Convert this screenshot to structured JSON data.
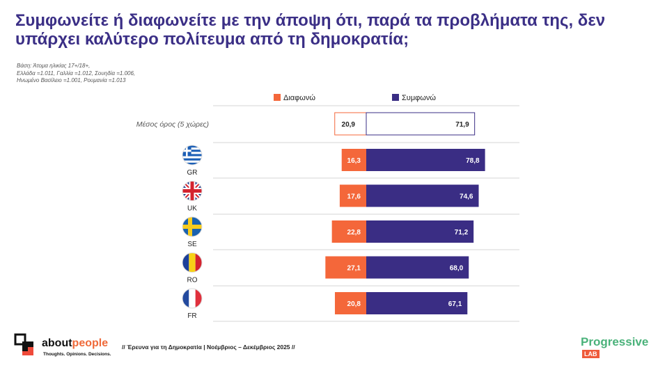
{
  "title": "Συμφωνείτε ή διαφωνείτε με την άποψη ότι, παρά τα προβλήματα της, δεν υπάρχει καλύτερο πολίτευμα από τη δημοκρατία;",
  "base_note": [
    "Βάση: Άτομα ηλικίας 17+/18+,",
    "Ελλάδα =1.011, Γαλλία =1.012, Σουηδία =1.006,",
    "Ηνωμένο Βασίλειο =1.001, Ρουμανία =1.013"
  ],
  "colors": {
    "disagree": "#f4673a",
    "agree": "#3a2d84",
    "title": "#3b2f86"
  },
  "chart_data": {
    "type": "bar",
    "orientation": "diverging-horizontal",
    "legend": [
      {
        "label": "Διαφωνώ",
        "color": "#f4673a"
      },
      {
        "label": "Συμφωνώ",
        "color": "#3a2d84"
      }
    ],
    "legend_position": "top",
    "grid": true,
    "average": {
      "label": "Μέσος όρος (5 χώρες)",
      "disagree": "20,9",
      "agree": "71,9"
    },
    "categories": [
      "GR",
      "UK",
      "SE",
      "RO",
      "FR"
    ],
    "flags": [
      "flag-greece-icon",
      "flag-uk-icon",
      "flag-sweden-icon",
      "flag-romania-icon",
      "flag-france-icon"
    ],
    "series": [
      {
        "name": "Διαφωνώ",
        "values": [
          16.3,
          17.6,
          22.8,
          27.1,
          20.8
        ],
        "labels": [
          "16,3",
          "17,6",
          "22,8",
          "27,1",
          "20,8"
        ]
      },
      {
        "name": "Συμφωνώ",
        "values": [
          78.8,
          74.6,
          71.2,
          68.0,
          67.1
        ],
        "labels": [
          "78,8",
          "74,6",
          "71,2",
          "68,0",
          "67,1"
        ]
      }
    ],
    "average_values": {
      "disagree": 20.9,
      "agree": 71.9
    }
  },
  "footer": {
    "survey": "// Έρευνα για τη Δημοκρατία | Νοέμβριος – Δεκέμβριος 2025 //",
    "aboutpeople_a": "about",
    "aboutpeople_b": "people",
    "aboutpeople_tag": "Thoughts. Opinions. Decisions.",
    "progressive": "Progressive",
    "lab": "LAB"
  }
}
